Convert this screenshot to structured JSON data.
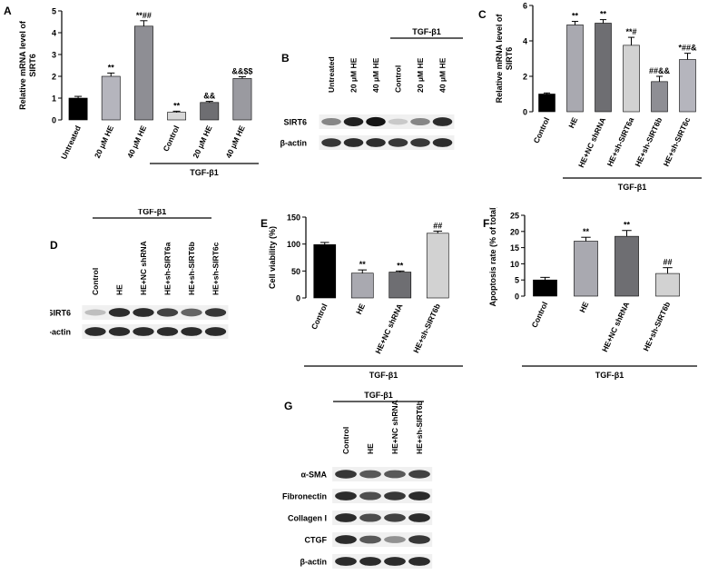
{
  "panel_labels": {
    "A": "A",
    "B": "B",
    "C": "C",
    "D": "D",
    "E": "E",
    "F": "F",
    "G": "G"
  },
  "colors": {
    "black": "#000000",
    "grey_light": "#b5b5bd",
    "grey_mid": "#8e8e94",
    "grey_dark": "#6e6e72",
    "grey_pale": "#d2d2d2",
    "blot_bg": "#f0f0f0"
  },
  "chart_data": [
    {
      "id": "A",
      "type": "bar",
      "ylabel": "Relative mRNA level of SIRT6",
      "ylim": [
        0,
        5
      ],
      "yticks": [
        0,
        1,
        2,
        3,
        4,
        5
      ],
      "categories": [
        "Untreated",
        "20 μM HE",
        "40 μM HE",
        "Control",
        "20 μM HE",
        "40 μM HE"
      ],
      "values": [
        1.0,
        2.0,
        4.3,
        0.35,
        0.8,
        1.9
      ],
      "errors": [
        0.08,
        0.15,
        0.25,
        0.05,
        0.05,
        0.08
      ],
      "annotations": [
        "",
        "**",
        "**##",
        "**",
        "&&",
        "&&$$"
      ],
      "group_label": "TGF-β1",
      "colors": [
        "#000000",
        "#b5b5bd",
        "#8e8e94",
        "#d8d8d8",
        "#6e6e72",
        "#9a9aa0"
      ]
    },
    {
      "id": "C",
      "type": "bar",
      "ylabel": "Relative mRNA level of SIRT6",
      "ylim": [
        0,
        6
      ],
      "yticks": [
        0,
        2,
        4,
        6
      ],
      "categories": [
        "Control",
        "HE",
        "HE+NC shRNA",
        "HE+sh-SIRT6a",
        "HE+sh-SIRT6b",
        "HE+sh-SIRT6c"
      ],
      "values": [
        1.0,
        4.9,
        5.0,
        3.75,
        1.7,
        2.95
      ],
      "errors": [
        0.06,
        0.2,
        0.2,
        0.45,
        0.3,
        0.35
      ],
      "annotations": [
        "",
        "**",
        "**",
        "**#",
        "##&&",
        "*##&"
      ],
      "group_label": "TGF-β1",
      "colors": [
        "#000000",
        "#a9a9b0",
        "#6e6e72",
        "#d2d2d2",
        "#8e8e94",
        "#b5b5bd"
      ]
    },
    {
      "id": "E",
      "type": "bar",
      "ylabel": "Cell viability (%)",
      "ylim": [
        0,
        150
      ],
      "yticks": [
        0,
        50,
        100,
        150
      ],
      "categories": [
        "Control",
        "HE",
        "HE+NC shRNA",
        "HE+sh-SIRT6b"
      ],
      "values": [
        99,
        46,
        48,
        120
      ],
      "errors": [
        4,
        6,
        2,
        4
      ],
      "annotations": [
        "",
        "**",
        "**",
        "##"
      ],
      "group_label": "TGF-β1",
      "colors": [
        "#000000",
        "#a9a9b0",
        "#6e6e72",
        "#d2d2d2"
      ]
    },
    {
      "id": "F",
      "type": "bar",
      "ylabel": "Apoptosis rate (% of total)",
      "ylim": [
        0,
        25
      ],
      "yticks": [
        0,
        5,
        10,
        15,
        20,
        25
      ],
      "categories": [
        "Control",
        "HE",
        "HE+NC shRNA",
        "HE+sh-SIRT6b"
      ],
      "values": [
        5,
        17,
        18.5,
        7
      ],
      "errors": [
        0.8,
        1.2,
        1.8,
        1.8
      ],
      "annotations": [
        "",
        "**",
        "**",
        "##"
      ],
      "group_label": "TGF-β1",
      "colors": [
        "#000000",
        "#a9a9b0",
        "#6e6e72",
        "#d2d2d2"
      ]
    }
  ],
  "blots": {
    "B": {
      "group_label": "TGF-β1",
      "lanes": [
        "Untreated",
        "20 μM HE",
        "40 μM HE",
        "Control",
        "20 μM HE",
        "40 μM HE"
      ],
      "rows": [
        {
          "label": "SIRT6",
          "intensity": [
            0.45,
            0.9,
            0.95,
            0.15,
            0.45,
            0.85
          ]
        },
        {
          "label": "β-actin",
          "intensity": [
            0.8,
            0.85,
            0.85,
            0.8,
            0.8,
            0.85
          ]
        }
      ]
    },
    "D": {
      "group_label": "TGF-β1",
      "lanes": [
        "Control",
        "HE",
        "HE+NC shRNA",
        "HE+sh-SIRT6a",
        "HE+sh-SIRT6b",
        "HE+sh-SIRT6c"
      ],
      "rows": [
        {
          "label": "SIRT6",
          "intensity": [
            0.2,
            0.85,
            0.85,
            0.75,
            0.6,
            0.8
          ]
        },
        {
          "label": "β-actin",
          "intensity": [
            0.85,
            0.85,
            0.85,
            0.85,
            0.85,
            0.85
          ]
        }
      ]
    },
    "G": {
      "group_label": "TGF-β1",
      "lanes": [
        "Control",
        "HE",
        "HE+NC shRNA",
        "HE+sh-SIRT6b"
      ],
      "rows": [
        {
          "label": "α-SMA",
          "intensity": [
            0.8,
            0.65,
            0.65,
            0.75
          ]
        },
        {
          "label": "Fibronectin",
          "intensity": [
            0.85,
            0.7,
            0.8,
            0.85
          ]
        },
        {
          "label": "Collagen I",
          "intensity": [
            0.85,
            0.7,
            0.75,
            0.85
          ]
        },
        {
          "label": "CTGF",
          "intensity": [
            0.85,
            0.65,
            0.4,
            0.8
          ]
        },
        {
          "label": "β-actin",
          "intensity": [
            0.85,
            0.85,
            0.85,
            0.85
          ]
        }
      ]
    }
  }
}
